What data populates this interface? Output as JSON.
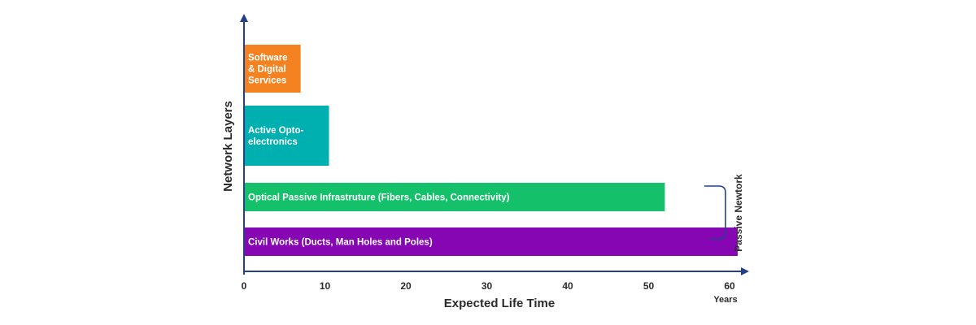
{
  "chart_data": {
    "type": "bar",
    "orientation": "horizontal",
    "xlabel": "Expected Life Time",
    "ylabel": "Network Layers",
    "x_unit": "Years",
    "xlim": [
      0,
      60
    ],
    "x_ticks": [
      "0",
      "10",
      "20",
      "30",
      "40",
      "50",
      "60"
    ],
    "grid": false,
    "bars": [
      {
        "label_lines": [
          "Software",
          "& Digital",
          "Services"
        ],
        "value": 7,
        "color": "#f58220"
      },
      {
        "label_lines": [
          "Active Opto-",
          "electronics"
        ],
        "value": 10.5,
        "color": "#00b0b0"
      },
      {
        "label_lines": [
          "Optical Passive Infrastruture (Fibers, Cables, Connectivity)"
        ],
        "value": 52,
        "color": "#14c06a"
      },
      {
        "label_lines": [
          "Civil Works (Ducts, Man Holes and Poles)"
        ],
        "value": 61,
        "color": "#8706b4"
      }
    ],
    "bracket": {
      "label": "Passive Newtork",
      "spans_bars": [
        2,
        3
      ]
    },
    "axis_color": "#23408e"
  }
}
